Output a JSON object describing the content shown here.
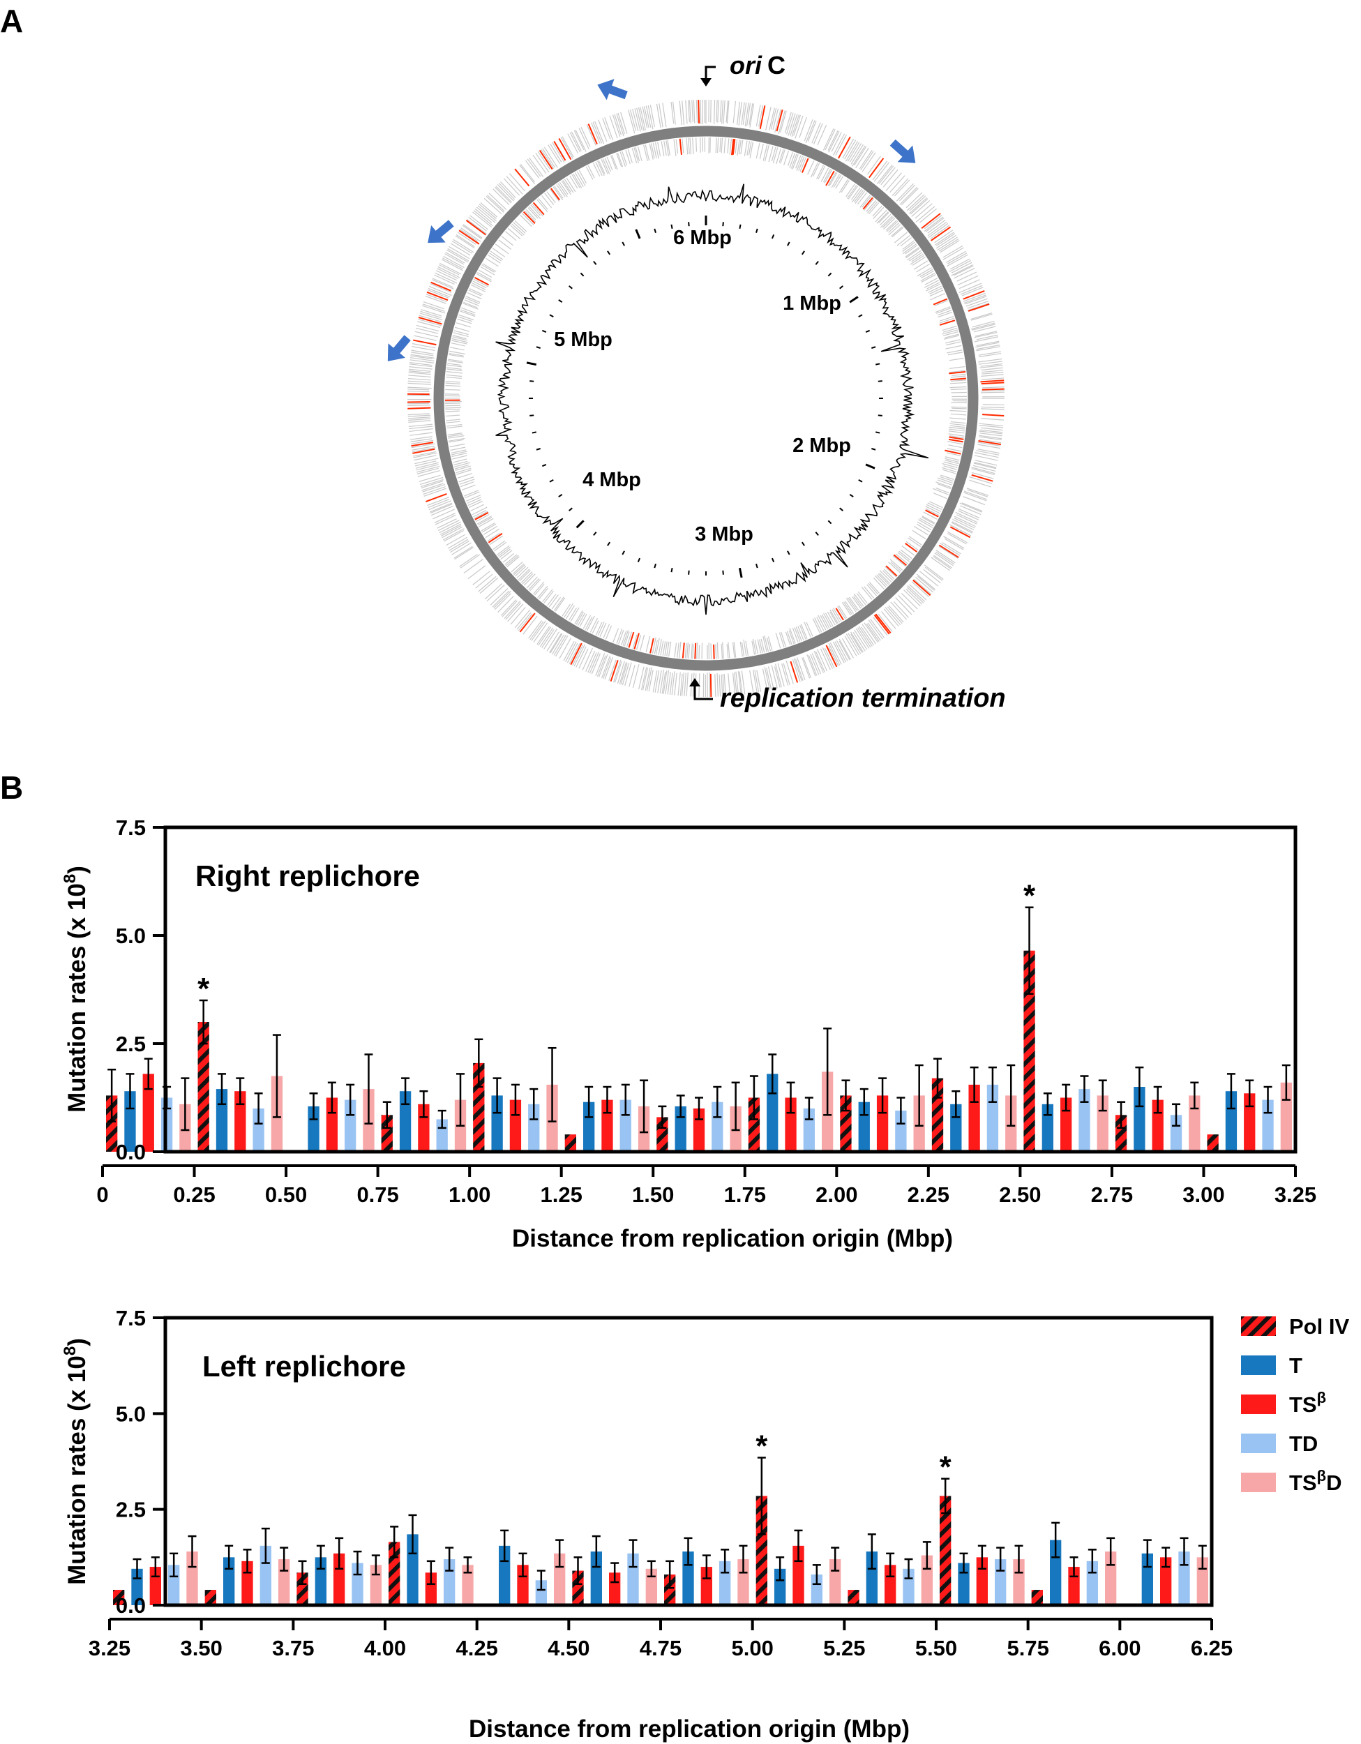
{
  "panels": {
    "a_label": "A",
    "b_label": "B"
  },
  "genome_map": {
    "ori_label_italic": "ori",
    "ori_label_suffix": "C",
    "termination_label": "replication termination",
    "scale_labels": [
      "6 Mbp",
      "1 Mbp",
      "2 Mbp",
      "3 Mbp",
      "4 Mbp",
      "5 Mbp"
    ],
    "arrow_icons": [
      "blue-arrow-icon",
      "blue-arrow-icon",
      "blue-arrow-icon",
      "blue-arrow-icon"
    ],
    "colors": {
      "ring": "#7f7f7f",
      "gene_tick": "#c8c8c8",
      "highlight_tick": "#ff2a00",
      "arrow": "#3d73c8",
      "skew": "#000000"
    }
  },
  "legend": {
    "items": [
      {
        "label": "Pol IV",
        "superscript": "",
        "suffix": "",
        "color": "#ff1a1a",
        "pattern": "hatched"
      },
      {
        "label": "T",
        "superscript": "",
        "suffix": "",
        "color": "#1778bf",
        "pattern": "solid"
      },
      {
        "label": "TS",
        "superscript": "β",
        "suffix": "",
        "color": "#ff1a1a",
        "pattern": "solid"
      },
      {
        "label": "TD",
        "superscript": "",
        "suffix": "",
        "color": "#99c3f2",
        "pattern": "solid"
      },
      {
        "label": "TS",
        "superscript": "β",
        "suffix": "D",
        "color": "#f7a7a7",
        "pattern": "solid"
      }
    ]
  },
  "chart_data": [
    {
      "type": "bar",
      "title": "Right replichore",
      "xlabel": "Distance from replication origin (Mbp)",
      "ylabel": "Mutation rates (x 10",
      "ylabel_sup": "8",
      "ylabel_close": ")",
      "ylim": [
        0,
        7.5
      ],
      "xlim": [
        0,
        3.25
      ],
      "yticks": [
        "0.0",
        "2.5",
        "5.0",
        "7.5"
      ],
      "xticks": [
        "0",
        "0.25",
        "0.50",
        "0.75",
        "1.00",
        "1.25",
        "1.50",
        "1.75",
        "2.00",
        "2.25",
        "2.50",
        "2.75",
        "3.00",
        "3.25"
      ],
      "group_starts": [
        0,
        0.25,
        0.5,
        0.75,
        1.0,
        1.25,
        1.5,
        1.75,
        2.0,
        2.25,
        2.5,
        2.75,
        3.0
      ],
      "series_order": [
        "Pol IV",
        "T",
        "TSβ",
        "TD",
        "TSβD"
      ],
      "groups": [
        [
          [
            1.3,
            0.6
          ],
          [
            1.4,
            0.4
          ],
          [
            1.8,
            0.35
          ],
          [
            1.25,
            0.25
          ],
          [
            1.1,
            0.6
          ]
        ],
        [
          [
            3.0,
            0.5
          ],
          [
            1.45,
            0.35
          ],
          [
            1.4,
            0.3
          ],
          [
            1.0,
            0.35
          ],
          [
            1.75,
            0.95
          ]
        ],
        [
          null,
          [
            1.05,
            0.3
          ],
          [
            1.25,
            0.35
          ],
          [
            1.2,
            0.35
          ],
          [
            1.45,
            0.8
          ]
        ],
        [
          [
            0.85,
            0.3
          ],
          [
            1.4,
            0.3
          ],
          [
            1.1,
            0.3
          ],
          [
            0.75,
            0.2
          ],
          [
            1.2,
            0.6
          ]
        ],
        [
          [
            2.05,
            0.55
          ],
          [
            1.3,
            0.4
          ],
          [
            1.2,
            0.35
          ],
          [
            1.1,
            0.35
          ],
          [
            1.55,
            0.85
          ]
        ],
        [
          [
            0.4,
            0
          ],
          [
            1.15,
            0.35
          ],
          [
            1.2,
            0.3
          ],
          [
            1.2,
            0.35
          ],
          [
            1.05,
            0.6
          ]
        ],
        [
          [
            0.8,
            0.25
          ],
          [
            1.05,
            0.25
          ],
          [
            1.0,
            0.25
          ],
          [
            1.15,
            0.35
          ],
          [
            1.05,
            0.55
          ]
        ],
        [
          [
            1.25,
            0.5
          ],
          [
            1.8,
            0.45
          ],
          [
            1.25,
            0.35
          ],
          [
            1.0,
            0.25
          ],
          [
            1.85,
            1.0
          ]
        ],
        [
          [
            1.3,
            0.35
          ],
          [
            1.15,
            0.3
          ],
          [
            1.3,
            0.4
          ],
          [
            0.95,
            0.3
          ],
          [
            1.3,
            0.7
          ]
        ],
        [
          [
            1.7,
            0.45
          ],
          [
            1.1,
            0.3
          ],
          [
            1.55,
            0.4
          ],
          [
            1.55,
            0.4
          ],
          [
            1.3,
            0.7
          ]
        ],
        [
          [
            4.65,
            1.0
          ],
          [
            1.1,
            0.25
          ],
          [
            1.25,
            0.3
          ],
          [
            1.45,
            0.3
          ],
          [
            1.3,
            0.35
          ]
        ],
        [
          [
            0.85,
            0.3
          ],
          [
            1.5,
            0.45
          ],
          [
            1.2,
            0.3
          ],
          [
            0.85,
            0.25
          ],
          [
            1.3,
            0.3
          ]
        ],
        [
          [
            0.4,
            0
          ],
          [
            1.4,
            0.4
          ],
          [
            1.35,
            0.3
          ],
          [
            1.2,
            0.3
          ],
          [
            1.6,
            0.4
          ]
        ]
      ],
      "significant": [
        {
          "group": 1,
          "series": 0,
          "label": "*"
        },
        {
          "group": 10,
          "series": 0,
          "label": "*"
        }
      ]
    },
    {
      "type": "bar",
      "title": "Left replichore",
      "xlabel": "Distance from replication origin (Mbp)",
      "ylabel": "Mutation rates (x 10",
      "ylabel_sup": "8",
      "ylabel_close": ")",
      "ylim": [
        0,
        7.5
      ],
      "xlim": [
        3.25,
        6.25
      ],
      "yticks": [
        "0.0",
        "2.5",
        "5.0",
        "7.5"
      ],
      "xticks": [
        "3.25",
        "3.50",
        "3.75",
        "4.00",
        "4.25",
        "4.50",
        "4.75",
        "5.00",
        "5.25",
        "5.50",
        "5.75",
        "6.00",
        "6.25"
      ],
      "group_starts": [
        3.25,
        3.5,
        3.75,
        4.0,
        4.25,
        4.5,
        4.75,
        5.0,
        5.25,
        5.5,
        5.75,
        6.0
      ],
      "series_order": [
        "Pol IV",
        "T",
        "TSβ",
        "TD",
        "TSβD"
      ],
      "groups": [
        [
          [
            0.4,
            0
          ],
          [
            0.95,
            0.25
          ],
          [
            1.0,
            0.25
          ],
          [
            1.05,
            0.3
          ],
          [
            1.4,
            0.4
          ]
        ],
        [
          [
            0.4,
            0
          ],
          [
            1.25,
            0.3
          ],
          [
            1.15,
            0.3
          ],
          [
            1.55,
            0.45
          ],
          [
            1.2,
            0.3
          ]
        ],
        [
          [
            0.85,
            0.3
          ],
          [
            1.25,
            0.3
          ],
          [
            1.35,
            0.4
          ],
          [
            1.1,
            0.3
          ],
          [
            1.05,
            0.25
          ]
        ],
        [
          [
            1.65,
            0.4
          ],
          [
            1.85,
            0.5
          ],
          [
            0.85,
            0.3
          ],
          [
            1.2,
            0.3
          ],
          [
            1.05,
            0.2
          ]
        ],
        [
          null,
          [
            1.55,
            0.4
          ],
          [
            1.05,
            0.3
          ],
          [
            0.65,
            0.25
          ],
          [
            1.35,
            0.35
          ]
        ],
        [
          [
            0.9,
            0.35
          ],
          [
            1.4,
            0.4
          ],
          [
            0.85,
            0.25
          ],
          [
            1.35,
            0.35
          ],
          [
            0.95,
            0.2
          ]
        ],
        [
          [
            0.8,
            0.35
          ],
          [
            1.4,
            0.35
          ],
          [
            1.0,
            0.3
          ],
          [
            1.15,
            0.3
          ],
          [
            1.2,
            0.35
          ]
        ],
        [
          [
            2.85,
            1.0
          ],
          [
            0.95,
            0.3
          ],
          [
            1.55,
            0.4
          ],
          [
            0.8,
            0.25
          ],
          [
            1.2,
            0.3
          ]
        ],
        [
          [
            0.4,
            0
          ],
          [
            1.4,
            0.45
          ],
          [
            1.05,
            0.3
          ],
          [
            0.95,
            0.25
          ],
          [
            1.3,
            0.35
          ]
        ],
        [
          [
            2.85,
            0.45
          ],
          [
            1.1,
            0.25
          ],
          [
            1.25,
            0.3
          ],
          [
            1.2,
            0.3
          ],
          [
            1.2,
            0.35
          ]
        ],
        [
          [
            0.4,
            0
          ],
          [
            1.7,
            0.45
          ],
          [
            1.0,
            0.25
          ],
          [
            1.15,
            0.3
          ],
          [
            1.4,
            0.35
          ]
        ],
        [
          null,
          [
            1.35,
            0.35
          ],
          [
            1.25,
            0.25
          ],
          [
            1.4,
            0.35
          ],
          [
            1.25,
            0.3
          ]
        ]
      ],
      "significant": [
        {
          "group": 7,
          "series": 0,
          "label": "*"
        },
        {
          "group": 9,
          "series": 0,
          "label": "*"
        }
      ]
    }
  ]
}
